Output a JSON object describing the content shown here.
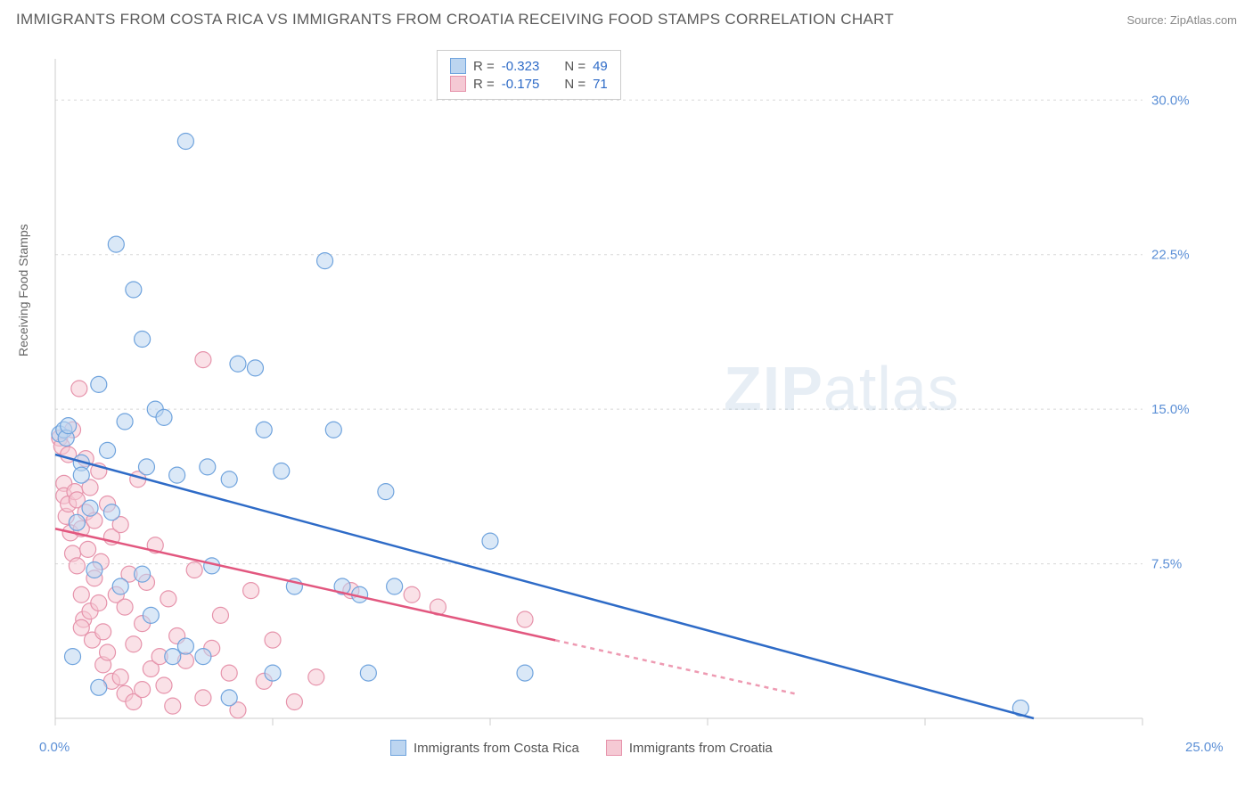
{
  "header": {
    "title": "IMMIGRANTS FROM COSTA RICA VS IMMIGRANTS FROM CROATIA RECEIVING FOOD STAMPS CORRELATION CHART",
    "source": "Source: ZipAtlas.com"
  },
  "chart": {
    "type": "scatter",
    "ylabel": "Receiving Food Stamps",
    "watermark": "ZIPatlas",
    "background_color": "#ffffff",
    "grid_color": "#d8d8d8",
    "axis_color": "#cccccc",
    "tick_label_color": "#5b8fd6",
    "xlim": [
      0,
      25
    ],
    "ylim": [
      0,
      32
    ],
    "x_ticks": [
      0,
      5,
      10,
      15,
      20,
      25
    ],
    "x_tick_labels": [
      "0.0%",
      "",
      "",
      "",
      "",
      "25.0%"
    ],
    "y_ticks": [
      7.5,
      15.0,
      22.5,
      30.0
    ],
    "y_tick_labels": [
      "7.5%",
      "15.0%",
      "22.5%",
      "30.0%"
    ],
    "marker_radius": 9,
    "marker_opacity": 0.55,
    "line_width": 2.5,
    "series": [
      {
        "name": "Immigrants from Costa Rica",
        "key": "costa_rica",
        "marker_fill": "#bcd5f0",
        "marker_stroke": "#6fa3dd",
        "line_color": "#2e6bc7",
        "R": "-0.323",
        "N": "49",
        "trend": {
          "x1": 0,
          "y1": 12.8,
          "x2": 22.5,
          "y2": 0
        },
        "trend_dashed_from_x": 22.5,
        "points": [
          [
            0.1,
            13.8
          ],
          [
            0.2,
            14.0
          ],
          [
            0.25,
            13.6
          ],
          [
            0.3,
            14.2
          ],
          [
            0.5,
            9.5
          ],
          [
            0.6,
            12.4
          ],
          [
            0.6,
            11.8
          ],
          [
            0.8,
            10.2
          ],
          [
            0.9,
            7.2
          ],
          [
            1.0,
            16.2
          ],
          [
            1.2,
            13.0
          ],
          [
            1.3,
            10.0
          ],
          [
            1.4,
            23.0
          ],
          [
            1.5,
            6.4
          ],
          [
            1.6,
            14.4
          ],
          [
            1.8,
            20.8
          ],
          [
            2.0,
            18.4
          ],
          [
            2.1,
            12.2
          ],
          [
            2.2,
            5.0
          ],
          [
            2.3,
            15.0
          ],
          [
            2.5,
            14.6
          ],
          [
            2.7,
            3.0
          ],
          [
            2.8,
            11.8
          ],
          [
            3.0,
            28.0
          ],
          [
            3.4,
            3.0
          ],
          [
            3.5,
            12.2
          ],
          [
            3.6,
            7.4
          ],
          [
            4.0,
            11.6
          ],
          [
            4.2,
            17.2
          ],
          [
            4.6,
            17.0
          ],
          [
            4.8,
            14.0
          ],
          [
            5.0,
            2.2
          ],
          [
            5.2,
            12.0
          ],
          [
            5.5,
            6.4
          ],
          [
            6.2,
            22.2
          ],
          [
            6.4,
            14.0
          ],
          [
            6.6,
            6.4
          ],
          [
            7.0,
            6.0
          ],
          [
            7.2,
            2.2
          ],
          [
            7.6,
            11.0
          ],
          [
            7.8,
            6.4
          ],
          [
            10.0,
            8.6
          ],
          [
            10.8,
            2.2
          ],
          [
            22.2,
            0.5
          ],
          [
            4.0,
            1.0
          ],
          [
            3.0,
            3.5
          ],
          [
            1.0,
            1.5
          ],
          [
            0.4,
            3.0
          ],
          [
            2.0,
            7.0
          ]
        ]
      },
      {
        "name": "Immigrants from Croatia",
        "key": "croatia",
        "marker_fill": "#f5c9d4",
        "marker_stroke": "#e693ab",
        "line_color": "#e2577f",
        "R": "-0.175",
        "N": "71",
        "trend": {
          "x1": 0,
          "y1": 9.2,
          "x2": 17,
          "y2": 1.2
        },
        "trend_dashed_from_x": 11.5,
        "points": [
          [
            0.1,
            13.6
          ],
          [
            0.15,
            13.2
          ],
          [
            0.2,
            11.4
          ],
          [
            0.2,
            10.8
          ],
          [
            0.25,
            9.8
          ],
          [
            0.3,
            12.8
          ],
          [
            0.3,
            10.4
          ],
          [
            0.35,
            9.0
          ],
          [
            0.4,
            14.0
          ],
          [
            0.4,
            8.0
          ],
          [
            0.45,
            11.0
          ],
          [
            0.5,
            10.6
          ],
          [
            0.5,
            7.4
          ],
          [
            0.55,
            16.0
          ],
          [
            0.6,
            9.2
          ],
          [
            0.6,
            6.0
          ],
          [
            0.65,
            4.8
          ],
          [
            0.7,
            12.6
          ],
          [
            0.7,
            10.0
          ],
          [
            0.75,
            8.2
          ],
          [
            0.8,
            11.2
          ],
          [
            0.8,
            5.2
          ],
          [
            0.85,
            3.8
          ],
          [
            0.9,
            9.6
          ],
          [
            0.9,
            6.8
          ],
          [
            1.0,
            12.0
          ],
          [
            1.0,
            5.6
          ],
          [
            1.05,
            7.6
          ],
          [
            1.1,
            4.2
          ],
          [
            1.1,
            2.6
          ],
          [
            1.2,
            10.4
          ],
          [
            1.2,
            3.2
          ],
          [
            1.3,
            8.8
          ],
          [
            1.3,
            1.8
          ],
          [
            1.4,
            6.0
          ],
          [
            1.5,
            9.4
          ],
          [
            1.5,
            2.0
          ],
          [
            1.6,
            5.4
          ],
          [
            1.6,
            1.2
          ],
          [
            1.7,
            7.0
          ],
          [
            1.8,
            3.6
          ],
          [
            1.8,
            0.8
          ],
          [
            1.9,
            11.6
          ],
          [
            2.0,
            4.6
          ],
          [
            2.0,
            1.4
          ],
          [
            2.1,
            6.6
          ],
          [
            2.2,
            2.4
          ],
          [
            2.3,
            8.4
          ],
          [
            2.4,
            3.0
          ],
          [
            2.5,
            1.6
          ],
          [
            2.6,
            5.8
          ],
          [
            2.7,
            0.6
          ],
          [
            2.8,
            4.0
          ],
          [
            3.0,
            2.8
          ],
          [
            3.2,
            7.2
          ],
          [
            3.4,
            1.0
          ],
          [
            3.4,
            17.4
          ],
          [
            3.6,
            3.4
          ],
          [
            3.8,
            5.0
          ],
          [
            4.0,
            2.2
          ],
          [
            4.2,
            0.4
          ],
          [
            4.5,
            6.2
          ],
          [
            4.8,
            1.8
          ],
          [
            5.0,
            3.8
          ],
          [
            5.5,
            0.8
          ],
          [
            6.0,
            2.0
          ],
          [
            6.8,
            6.2
          ],
          [
            8.2,
            6.0
          ],
          [
            8.8,
            5.4
          ],
          [
            10.8,
            4.8
          ],
          [
            0.6,
            4.4
          ]
        ]
      }
    ],
    "legend_bottom": [
      {
        "label": "Immigrants from Costa Rica",
        "fill": "#bcd5f0",
        "stroke": "#6fa3dd"
      },
      {
        "label": "Immigrants from Croatia",
        "fill": "#f5c9d4",
        "stroke": "#e693ab"
      }
    ]
  }
}
